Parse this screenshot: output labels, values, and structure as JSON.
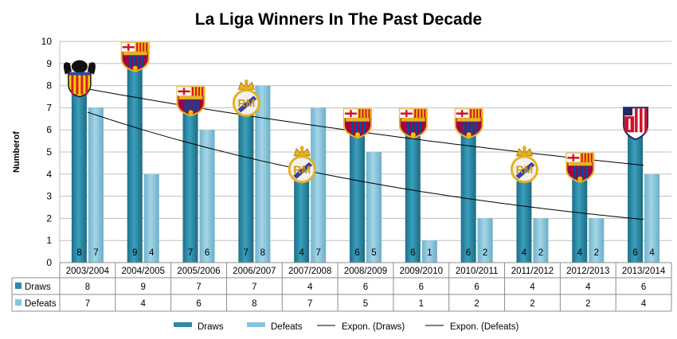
{
  "chart_data": {
    "type": "bar",
    "title": "La Liga Winners In The Past Decade",
    "ylabel": "Numberof",
    "xlabel": "",
    "ylim": [
      0,
      10
    ],
    "yticks": [
      "0",
      "1",
      "2",
      "3",
      "4",
      "5",
      "6",
      "7",
      "8",
      "9",
      "10"
    ],
    "categories": [
      "2003/2004",
      "2004/2005",
      "2005/2006",
      "2006/2007",
      "2007/2008",
      "2008/2009",
      "2009/2010",
      "2010/2011",
      "2011/2012",
      "2012/2013",
      "2013/2014"
    ],
    "winners": [
      "Valencia",
      "Barcelona",
      "Barcelona",
      "Real Madrid",
      "Real Madrid",
      "Barcelona",
      "Barcelona",
      "Barcelona",
      "Real Madrid",
      "Barcelona",
      "Atletico Madrid"
    ],
    "series": [
      {
        "name": "Draws",
        "values": [
          8,
          9,
          7,
          7,
          4,
          6,
          6,
          6,
          4,
          4,
          6
        ],
        "color": "#2e8ba6"
      },
      {
        "name": "Defeats",
        "values": [
          7,
          4,
          6,
          8,
          7,
          5,
          1,
          2,
          2,
          2,
          4
        ],
        "color": "#84c4dc"
      }
    ],
    "trendlines": [
      {
        "name": "Expon. (Draws)",
        "type": "exponential",
        "start": 7.85,
        "end": 4.4
      },
      {
        "name": "Expon. (Defeats)",
        "type": "exponential",
        "start": 6.8,
        "end": 1.95
      }
    ],
    "legend": [
      "Draws",
      "Defeats",
      "Expon. (Draws)",
      "Expon. (Defeats)"
    ],
    "grid": true,
    "data_table": true
  }
}
